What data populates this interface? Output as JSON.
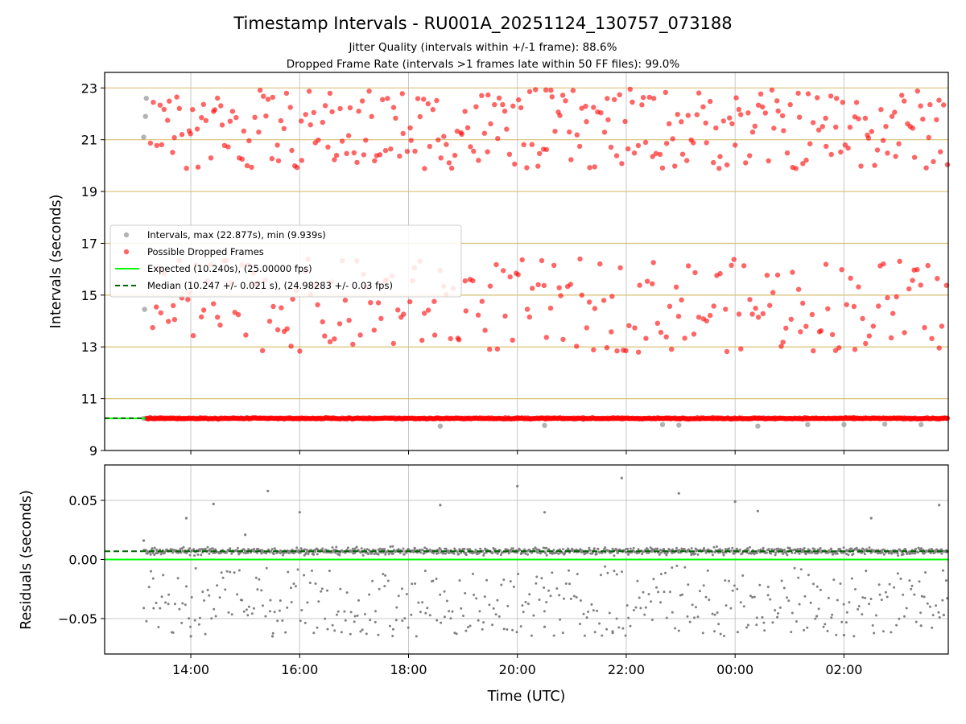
{
  "chart_data": {
    "title": "Timestamp Intervals - RU001A_20251124_130757_073188",
    "subtitles": [
      "Jitter Quality (intervals within +/-1 frame): 88.6%",
      "Dropped Frame Rate (intervals >1 frames late within 50 FF files): 99.0%"
    ],
    "xlabel": "Time (UTC)",
    "x_ticks": [
      "14:00",
      "16:00",
      "18:00",
      "20:00",
      "22:00",
      "00:00",
      "02:00"
    ],
    "x_range": [
      "12:25",
      "03:55"
    ],
    "grid": true,
    "panels": [
      {
        "type": "scatter",
        "ylabel": "Intervals (seconds)",
        "ylim": [
          9,
          23.6
        ],
        "y_ticks": [
          "9",
          "11",
          "13",
          "15",
          "17",
          "19",
          "21",
          "23"
        ],
        "reference_lines": [
          11,
          13,
          15,
          17,
          19,
          21,
          23
        ],
        "legend_position": "center-left",
        "series": [
          {
            "name": "Intervals, max (22.877s), min (9.939s)",
            "color": "#808080",
            "kind": "scatter",
            "max": 22.877,
            "min": 9.939,
            "points": [
              {
                "t": "13:08",
                "y": 10.24
              },
              {
                "t": "13:08",
                "y": 21.1
              },
              {
                "t": "13:10",
                "y": 21.9
              },
              {
                "t": "13:11",
                "y": 22.6
              },
              {
                "t": "13:09",
                "y": 14.45
              },
              {
                "t": "18:35",
                "y": 9.94
              },
              {
                "t": "20:30",
                "y": 9.97
              },
              {
                "t": "22:40",
                "y": 10.0
              },
              {
                "t": "22:58",
                "y": 9.98
              },
              {
                "t": "00:25",
                "y": 9.94
              },
              {
                "t": "01:20",
                "y": 10.0
              },
              {
                "t": "02:00",
                "y": 10.0
              },
              {
                "t": "02:45",
                "y": 10.02
              },
              {
                "t": "03:25",
                "y": 10.0
              }
            ]
          },
          {
            "name": "Possible Dropped Frames",
            "color": "#ff0000",
            "kind": "scatter",
            "clusters": [
              {
                "t_start": "13:10",
                "t_end": "03:55",
                "y_center": 10.24,
                "spread": 0.12,
                "count": 900
              },
              {
                "t_start": "13:15",
                "t_end": "03:55",
                "y_center": 14.6,
                "spread": 1.8,
                "count": 230
              },
              {
                "t_start": "13:15",
                "t_end": "03:55",
                "y_center": 21.4,
                "spread": 1.55,
                "count": 300
              }
            ]
          },
          {
            "name": "Expected (10.240s), (25.00000 fps)",
            "color": "#00ff00",
            "kind": "line",
            "y": 10.24
          },
          {
            "name": "Median (10.247 +/- 0.021 s), (24.98283 +/- 0.03 fps)",
            "color": "#006400",
            "kind": "dashed-line",
            "y": 10.247
          }
        ]
      },
      {
        "type": "scatter",
        "ylabel": "Residuals (seconds)",
        "ylim": [
          -0.08,
          0.08
        ],
        "y_ticks": [
          "−0.05",
          "0.00",
          "0.05"
        ],
        "lines": [
          {
            "name": "expected",
            "color": "#00ff00",
            "y": 0.0
          },
          {
            "name": "median",
            "color": "#006400",
            "dash": true,
            "y": 0.007
          }
        ],
        "series": [
          {
            "color": "#808080",
            "kind": "scatter",
            "clusters": [
              {
                "t_start": "13:08",
                "t_end": "03:55",
                "y_center": 0.007,
                "spread": 0.005,
                "count": 1100
              },
              {
                "t_start": "13:08",
                "t_end": "03:55",
                "y_min": -0.065,
                "y_max": -0.005,
                "count": 420
              }
            ],
            "outliers": [
              {
                "t": "13:08",
                "y": 0.016
              },
              {
                "t": "13:55",
                "y": 0.035
              },
              {
                "t": "14:00",
                "y": -0.065
              },
              {
                "t": "14:25",
                "y": 0.047
              },
              {
                "t": "15:00",
                "y": 0.021
              },
              {
                "t": "15:25",
                "y": 0.058
              },
              {
                "t": "15:30",
                "y": -0.065
              },
              {
                "t": "16:00",
                "y": 0.04
              },
              {
                "t": "18:35",
                "y": 0.046
              },
              {
                "t": "20:00",
                "y": 0.062
              },
              {
                "t": "20:30",
                "y": 0.04
              },
              {
                "t": "20:30",
                "y": -0.057
              },
              {
                "t": "21:45",
                "y": -0.062
              },
              {
                "t": "21:55",
                "y": 0.069
              },
              {
                "t": "22:58",
                "y": 0.056
              },
              {
                "t": "00:00",
                "y": 0.049
              },
              {
                "t": "00:25",
                "y": 0.041
              },
              {
                "t": "01:30",
                "y": -0.048
              },
              {
                "t": "02:00",
                "y": -0.064
              },
              {
                "t": "02:30",
                "y": 0.035
              },
              {
                "t": "03:25",
                "y": -0.056
              },
              {
                "t": "03:45",
                "y": 0.046
              },
              {
                "t": "03:50",
                "y": -0.047
              }
            ]
          }
        ]
      }
    ]
  }
}
